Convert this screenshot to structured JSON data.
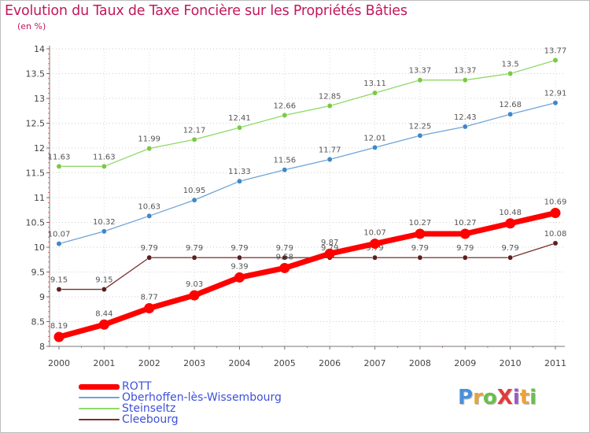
{
  "title": "Evolution du Taux de Taxe Foncière sur les Propriétés Bâties",
  "subtitle": "(en %)",
  "logo": {
    "text": "ProXiti",
    "letter_colors": [
      "#4a90d9",
      "#e8a33a",
      "#6abf4b",
      "#e23b3b",
      "#9c5bbf",
      "#e8a33a",
      "#6abf4b"
    ]
  },
  "chart_data": {
    "type": "line",
    "title": "Evolution du Taux de Taxe Foncière sur les Propriétés Bâties",
    "ylabel": "(en %)",
    "xlabel": "",
    "x": [
      "2000",
      "2001",
      "2002",
      "2003",
      "2004",
      "2005",
      "2006",
      "2007",
      "2008",
      "2009",
      "2010",
      "2011"
    ],
    "ylim": [
      8,
      14
    ],
    "yticks": [
      8,
      8.5,
      9,
      9.5,
      10,
      10.5,
      11,
      11.5,
      12,
      12.5,
      13,
      13.5,
      14
    ],
    "ytick_labels": [
      "8",
      "8.5",
      "9",
      "9.5",
      "10",
      "10.5",
      "11",
      "11.5",
      "12",
      "12.5",
      "13",
      "13.5",
      "14"
    ],
    "grid": "horizontal dotted",
    "legend_position": "bottom-left",
    "series": [
      {
        "name": "Steinseltz",
        "color": "#8fd96a",
        "marker_color": "#7ac943",
        "values": [
          11.63,
          11.63,
          11.99,
          12.17,
          12.41,
          12.66,
          12.85,
          13.11,
          13.37,
          13.37,
          13.5,
          13.77
        ],
        "labels": [
          "11.63",
          "11.63",
          "11.99",
          "12.17",
          "12.41",
          "12.66",
          "12.85",
          "13.11",
          "13.37",
          "13.37",
          "13.5",
          "13.77"
        ]
      },
      {
        "name": "Oberhoffen-lès-Wissembourg",
        "color": "#6fa4d6",
        "marker_color": "#3f88c9",
        "values": [
          10.07,
          10.32,
          10.63,
          10.95,
          11.33,
          11.56,
          11.77,
          12.01,
          12.25,
          12.43,
          12.68,
          12.91
        ],
        "labels": [
          "10.07",
          "10.32",
          "10.63",
          "10.95",
          "11.33",
          "11.56",
          "11.77",
          "12.01",
          "12.25",
          "12.43",
          "12.68",
          "12.91"
        ]
      },
      {
        "name": "Cleebourg",
        "color": "#7a2e2e",
        "marker_color": "#5c1f1f",
        "values": [
          9.15,
          9.15,
          9.79,
          9.79,
          9.79,
          9.79,
          9.79,
          9.79,
          9.79,
          9.79,
          9.79,
          10.08
        ],
        "labels": [
          "9.15",
          "9.15",
          "9.79",
          "9.79",
          "9.79",
          "9.79",
          "9.79",
          "9.79",
          "9.79",
          "9.79",
          "9.79",
          "10.08"
        ]
      },
      {
        "name": "ROTT",
        "color": "#ff0000",
        "marker_color": "#ff0000",
        "values": [
          8.19,
          8.44,
          8.77,
          9.03,
          9.39,
          9.58,
          9.87,
          10.07,
          10.27,
          10.27,
          10.48,
          10.69
        ],
        "labels": [
          "8.19",
          "8.44",
          "8.77",
          "9.03",
          "9.39",
          "9.58",
          "9.87",
          "10.07",
          "10.27",
          "10.27",
          "10.48",
          "10.69"
        ]
      }
    ],
    "legend": [
      {
        "name": "ROTT",
        "color": "#ff0000"
      },
      {
        "name": "Oberhoffen-lès-Wissembourg",
        "color": "#6fa4d6"
      },
      {
        "name": "Steinseltz",
        "color": "#8fd96a"
      },
      {
        "name": "Cleebourg",
        "color": "#7a2e2e"
      }
    ]
  }
}
